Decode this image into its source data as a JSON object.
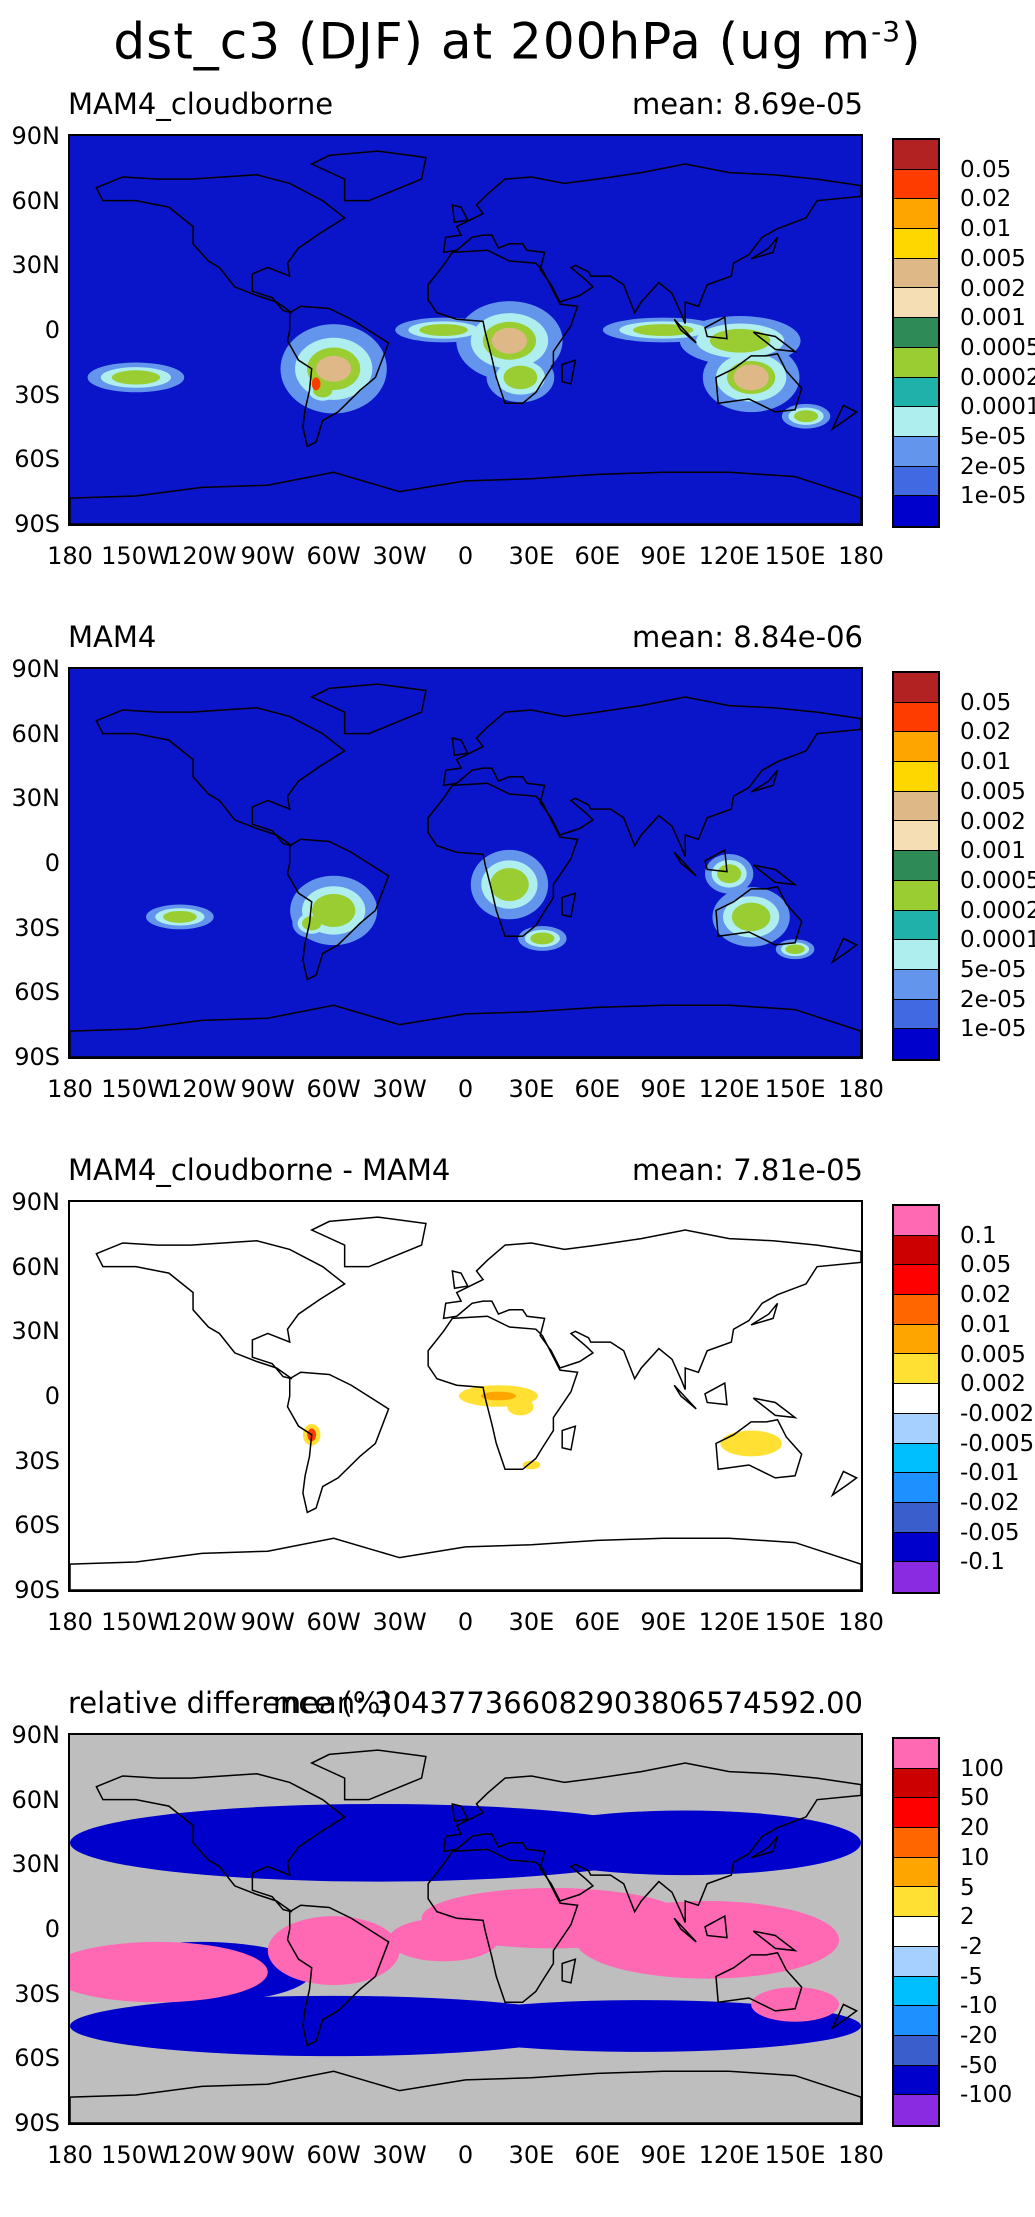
{
  "figure": {
    "title_main": "dst_c3 (DJF) at 200hPa (ug m",
    "title_sup": "-3",
    "title_end": ")"
  },
  "axes": {
    "lat_labels": [
      "90N",
      "60N",
      "30N",
      "0",
      "30S",
      "60S",
      "90S"
    ],
    "lon_labels": [
      "180",
      "150W",
      "120W",
      "90W",
      "60W",
      "30W",
      "0",
      "30E",
      "60E",
      "90E",
      "120E",
      "150E",
      "180"
    ]
  },
  "panels": [
    {
      "left_title": "MAM4_cloudborne",
      "right_title": "mean: 8.69e-05",
      "background": "#0a14c8",
      "legend_colors": [
        "#b22222",
        "#ff3c00",
        "#ffa500",
        "#ffd700",
        "#deb887",
        "#f5deb3",
        "#2e8b57",
        "#9acd32",
        "#20b2aa",
        "#afeeee",
        "#6495ed",
        "#4169e1",
        "#0000cd"
      ],
      "legend_labels": [
        "0.05",
        "0.02",
        "0.01",
        "0.005",
        "0.002",
        "0.001",
        "0.0005",
        "0.0002",
        "0.0001",
        "5e-05",
        "2e-05",
        "1e-05"
      ]
    },
    {
      "left_title": "MAM4",
      "right_title": "mean: 8.84e-06",
      "background": "#0a14c8",
      "legend_colors": [
        "#b22222",
        "#ff3c00",
        "#ffa500",
        "#ffd700",
        "#deb887",
        "#f5deb3",
        "#2e8b57",
        "#9acd32",
        "#20b2aa",
        "#afeeee",
        "#6495ed",
        "#4169e1",
        "#0000cd"
      ],
      "legend_labels": [
        "0.05",
        "0.02",
        "0.01",
        "0.005",
        "0.002",
        "0.001",
        "0.0005",
        "0.0002",
        "0.0001",
        "5e-05",
        "2e-05",
        "1e-05"
      ]
    },
    {
      "left_title": "MAM4_cloudborne - MAM4",
      "right_title": "mean: 7.81e-05",
      "background": "#ffffff",
      "legend_colors": [
        "#ff69b4",
        "#cd0000",
        "#ff0000",
        "#ff6600",
        "#ffa500",
        "#ffe033",
        "#ffffff",
        "#a6d0ff",
        "#00bfff",
        "#1e90ff",
        "#3a5fcd",
        "#0000cd",
        "#8a2be2"
      ],
      "legend_labels": [
        "0.1",
        "0.05",
        "0.02",
        "0.01",
        "0.005",
        "0.002",
        "-0.002",
        "-0.005",
        "-0.01",
        "-0.02",
        "-0.05",
        "-0.1"
      ]
    },
    {
      "left_title": "relative difference (%)",
      "right_title": "mean: 30437736608290380657459​2.00",
      "background": "#bebebe",
      "legend_colors": [
        "#ff69b4",
        "#cd0000",
        "#ff0000",
        "#ff6600",
        "#ffa500",
        "#ffe033",
        "#ffffff",
        "#a6d0ff",
        "#00bfff",
        "#1e90ff",
        "#3a5fcd",
        "#0000cd",
        "#8a2be2"
      ],
      "legend_labels": [
        "100",
        "50",
        "20",
        "10",
        "5",
        "2",
        "-2",
        "-5",
        "-10",
        "-20",
        "-50",
        "-100"
      ]
    }
  ]
}
